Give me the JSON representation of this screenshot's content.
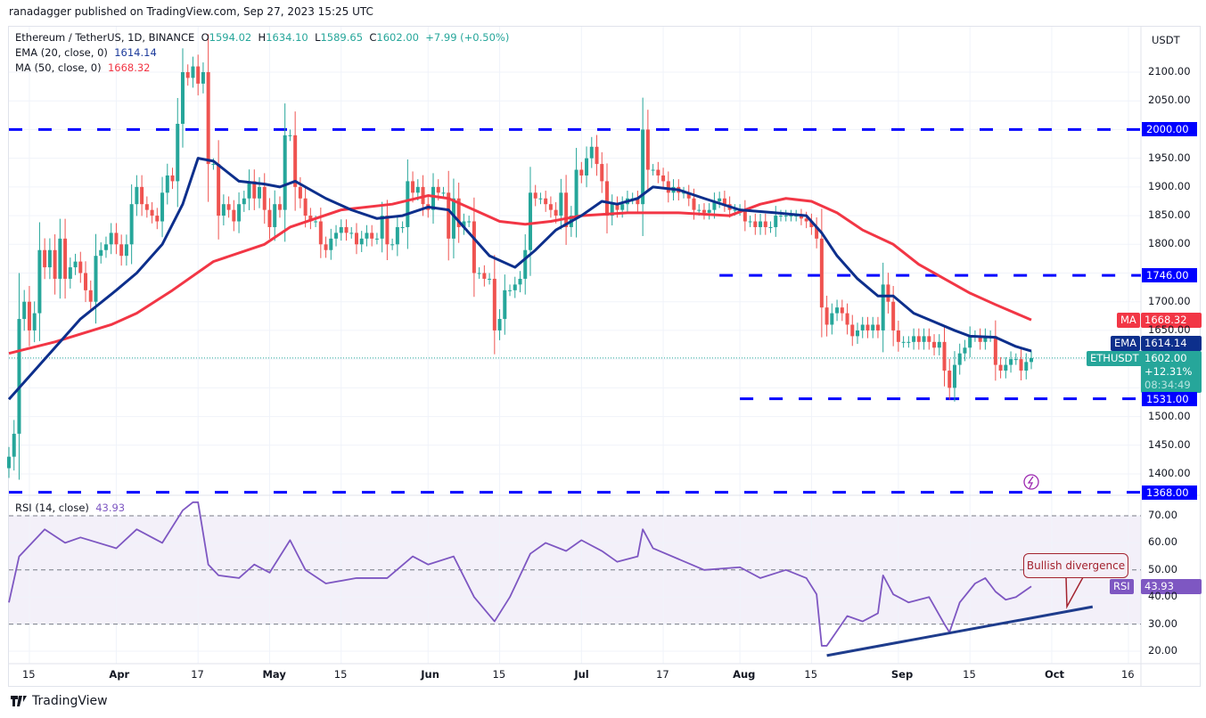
{
  "header": {
    "published": "ranadagger published on TradingView.com, Sep 27, 2023 15:25 UTC"
  },
  "symbol": {
    "name": "Ethereum / TetherUS, 1D, BINANCE",
    "o_label": "O",
    "o": "1594.02",
    "h_label": "H",
    "h": "1634.10",
    "l_label": "L",
    "l": "1589.65",
    "c_label": "C",
    "c": "1602.00",
    "change": "+7.99 (+0.50%)"
  },
  "indicators": {
    "ema": {
      "label": "EMA (20, close, 0)",
      "value": "1614.14",
      "tag": "EMA",
      "color": "#0d2f8c"
    },
    "ma": {
      "label": "MA (50, close, 0)",
      "value": "1668.32",
      "tag": "MA",
      "color": "#f23645"
    },
    "rsi": {
      "label": "RSI (14, close)",
      "value": "43.93",
      "tag": "RSI",
      "color": "#7e57c2"
    }
  },
  "price_scale": {
    "currency": "USDT",
    "ticks": [
      "2100.00",
      "2050.00",
      "1950.00",
      "1900.00",
      "1850.00",
      "1800.00",
      "1700.00",
      "1650.00",
      "1500.00",
      "1450.00",
      "1400.00"
    ]
  },
  "last_price": {
    "symbol_tag": "ETHUSDT",
    "price": "1602.00",
    "change_pct": "+12.31%",
    "countdown": "08:34:49",
    "color": "#26a69a"
  },
  "levels": [
    {
      "price": 2000,
      "label": "2000.00",
      "from": "2023-03-11"
    },
    {
      "price": 1746,
      "label": "1746.00",
      "from": "2023-07-28"
    },
    {
      "price": 1531,
      "label": "1531.00",
      "from": "2023-08-01"
    },
    {
      "price": 1368,
      "label": "1368.00",
      "from": "2023-03-11"
    }
  ],
  "rsi_scale": {
    "ticks": [
      "70.00",
      "60.00",
      "50.00",
      "40.00",
      "30.00",
      "20.00"
    ]
  },
  "time_axis": [
    {
      "label": "15",
      "date": "2023-03-15",
      "bold": false
    },
    {
      "label": "Apr",
      "date": "2023-04-01",
      "bold": true
    },
    {
      "label": "17",
      "date": "2023-04-17",
      "bold": false
    },
    {
      "label": "May",
      "date": "2023-05-01",
      "bold": true
    },
    {
      "label": "15",
      "date": "2023-05-15",
      "bold": false
    },
    {
      "label": "Jun",
      "date": "2023-06-01",
      "bold": true
    },
    {
      "label": "15",
      "date": "2023-06-15",
      "bold": false
    },
    {
      "label": "Jul",
      "date": "2023-07-01",
      "bold": true
    },
    {
      "label": "17",
      "date": "2023-07-17",
      "bold": false
    },
    {
      "label": "Aug",
      "date": "2023-08-01",
      "bold": true
    },
    {
      "label": "15",
      "date": "2023-08-15",
      "bold": false
    },
    {
      "label": "Sep",
      "date": "2023-09-01",
      "bold": true
    },
    {
      "label": "15",
      "date": "2023-09-15",
      "bold": false
    },
    {
      "label": "Oct",
      "date": "2023-10-01",
      "bold": true
    },
    {
      "label": "16",
      "date": "2023-10-16",
      "bold": false
    }
  ],
  "annotation": {
    "text": "Bullish divergence",
    "color": "#a3232f",
    "trendline": [
      [
        "2023-08-18",
        18.4
      ],
      [
        "2023-10-09",
        36.4
      ]
    ],
    "trendline_color": "#1e3c8c"
  },
  "footer": {
    "logo": "TradingView"
  },
  "chart_data": {
    "type": "candlestick",
    "title": "Ethereum / TetherUS, 1D, BINANCE",
    "ylim": [
      1350,
      2150
    ],
    "rsi_ylim": [
      15,
      80
    ],
    "up_color": "#26a69a",
    "down_color": "#ef5350",
    "start_date": "2023-03-11",
    "closes": [
      1430,
      1470,
      1670,
      1700,
      1650,
      1680,
      1790,
      1760,
      1790,
      1740,
      1810,
      1740,
      1760,
      1770,
      1750,
      1720,
      1700,
      1780,
      1790,
      1800,
      1820,
      1800,
      1780,
      1800,
      1870,
      1900,
      1870,
      1860,
      1850,
      1840,
      1890,
      1920,
      1910,
      2010,
      2100,
      2090,
      2110,
      2080,
      2100,
      1940,
      1940,
      1850,
      1870,
      1860,
      1840,
      1870,
      1880,
      1910,
      1880,
      1900,
      1860,
      1830,
      1870,
      1860,
      1990,
      1990,
      1900,
      1880,
      1850,
      1840,
      1840,
      1800,
      1790,
      1810,
      1820,
      1830,
      1820,
      1820,
      1800,
      1810,
      1820,
      1810,
      1810,
      1850,
      1800,
      1800,
      1830,
      1830,
      1910,
      1890,
      1900,
      1870,
      1860,
      1900,
      1890,
      1890,
      1810,
      1880,
      1830,
      1840,
      1840,
      1750,
      1750,
      1740,
      1740,
      1650,
      1670,
      1720,
      1720,
      1730,
      1740,
      1790,
      1890,
      1880,
      1880,
      1870,
      1860,
      1850,
      1890,
      1830,
      1850,
      1930,
      1920,
      1950,
      1970,
      1940,
      1910,
      1850,
      1870,
      1860,
      1870,
      1880,
      1880,
      1870,
      2000,
      1930,
      1930,
      1920,
      1910,
      1890,
      1900,
      1890,
      1890,
      1880,
      1860,
      1860,
      1855,
      1860,
      1875,
      1880,
      1870,
      1860,
      1860,
      1860,
      1840,
      1840,
      1830,
      1840,
      1830,
      1830,
      1850,
      1850,
      1850,
      1850,
      1850,
      1845,
      1840,
      1830,
      1810,
      1690,
      1660,
      1680,
      1690,
      1680,
      1660,
      1640,
      1650,
      1660,
      1650,
      1660,
      1650,
      1730,
      1700,
      1650,
      1630,
      1630,
      1630,
      1640,
      1630,
      1640,
      1630,
      1620,
      1630,
      1580,
      1550,
      1590,
      1610,
      1620,
      1640,
      1640,
      1630,
      1640,
      1640,
      1590,
      1580,
      1590,
      1600,
      1600,
      1580,
      1595,
      1602
    ],
    "ema20": [
      [
        "2023-03-11",
        1530
      ],
      [
        "2023-03-15",
        1570
      ],
      [
        "2023-03-20",
        1620
      ],
      [
        "2023-03-25",
        1670
      ],
      [
        "2023-04-01",
        1720
      ],
      [
        "2023-04-05",
        1750
      ],
      [
        "2023-04-10",
        1800
      ],
      [
        "2023-04-14",
        1870
      ],
      [
        "2023-04-17",
        1950
      ],
      [
        "2023-04-20",
        1945
      ],
      [
        "2023-04-25",
        1910
      ],
      [
        "2023-04-30",
        1905
      ],
      [
        "2023-05-03",
        1900
      ],
      [
        "2023-05-06",
        1910
      ],
      [
        "2023-05-12",
        1880
      ],
      [
        "2023-05-17",
        1860
      ],
      [
        "2023-05-22",
        1845
      ],
      [
        "2023-05-27",
        1850
      ],
      [
        "2023-06-01",
        1865
      ],
      [
        "2023-06-05",
        1860
      ],
      [
        "2023-06-09",
        1820
      ],
      [
        "2023-06-13",
        1780
      ],
      [
        "2023-06-18",
        1760
      ],
      [
        "2023-06-22",
        1790
      ],
      [
        "2023-06-26",
        1825
      ],
      [
        "2023-07-01",
        1850
      ],
      [
        "2023-07-05",
        1875
      ],
      [
        "2023-07-08",
        1870
      ],
      [
        "2023-07-12",
        1880
      ],
      [
        "2023-07-15",
        1900
      ],
      [
        "2023-07-20",
        1895
      ],
      [
        "2023-07-25",
        1880
      ],
      [
        "2023-08-01",
        1860
      ],
      [
        "2023-08-08",
        1855
      ],
      [
        "2023-08-14",
        1850
      ],
      [
        "2023-08-17",
        1820
      ],
      [
        "2023-08-20",
        1780
      ],
      [
        "2023-08-24",
        1740
      ],
      [
        "2023-08-28",
        1710
      ],
      [
        "2023-08-31",
        1710
      ],
      [
        "2023-09-04",
        1680
      ],
      [
        "2023-09-08",
        1665
      ],
      [
        "2023-09-12",
        1650
      ],
      [
        "2023-09-15",
        1640
      ],
      [
        "2023-09-20",
        1638
      ],
      [
        "2023-09-24",
        1622
      ],
      [
        "2023-09-27",
        1614.14
      ]
    ],
    "ma50": [
      [
        "2023-03-11",
        1610
      ],
      [
        "2023-03-20",
        1630
      ],
      [
        "2023-03-31",
        1660
      ],
      [
        "2023-04-05",
        1680
      ],
      [
        "2023-04-12",
        1720
      ],
      [
        "2023-04-20",
        1770
      ],
      [
        "2023-04-30",
        1800
      ],
      [
        "2023-05-05",
        1830
      ],
      [
        "2023-05-15",
        1860
      ],
      [
        "2023-05-25",
        1870
      ],
      [
        "2023-06-01",
        1885
      ],
      [
        "2023-06-05",
        1880
      ],
      [
        "2023-06-10",
        1860
      ],
      [
        "2023-06-15",
        1840
      ],
      [
        "2023-06-20",
        1835
      ],
      [
        "2023-06-25",
        1840
      ],
      [
        "2023-07-01",
        1850
      ],
      [
        "2023-07-10",
        1855
      ],
      [
        "2023-07-20",
        1855
      ],
      [
        "2023-07-30",
        1850
      ],
      [
        "2023-08-05",
        1870
      ],
      [
        "2023-08-10",
        1880
      ],
      [
        "2023-08-15",
        1875
      ],
      [
        "2023-08-20",
        1855
      ],
      [
        "2023-08-25",
        1825
      ],
      [
        "2023-08-31",
        1800
      ],
      [
        "2023-09-05",
        1765
      ],
      [
        "2023-09-10",
        1740
      ],
      [
        "2023-09-15",
        1715
      ],
      [
        "2023-09-20",
        1695
      ],
      [
        "2023-09-27",
        1668.32
      ]
    ],
    "rsi": [
      [
        "2023-03-11",
        38
      ],
      [
        "2023-03-13",
        55
      ],
      [
        "2023-03-18",
        65
      ],
      [
        "2023-03-22",
        60
      ],
      [
        "2023-03-25",
        62
      ],
      [
        "2023-04-01",
        58
      ],
      [
        "2023-04-05",
        65
      ],
      [
        "2023-04-10",
        60
      ],
      [
        "2023-04-14",
        72
      ],
      [
        "2023-04-16",
        75
      ],
      [
        "2023-04-17",
        75
      ],
      [
        "2023-04-19",
        52
      ],
      [
        "2023-04-21",
        48
      ],
      [
        "2023-04-25",
        47
      ],
      [
        "2023-04-28",
        52
      ],
      [
        "2023-05-01",
        49
      ],
      [
        "2023-05-05",
        61
      ],
      [
        "2023-05-08",
        50
      ],
      [
        "2023-05-12",
        45
      ],
      [
        "2023-05-18",
        47
      ],
      [
        "2023-05-24",
        47
      ],
      [
        "2023-05-29",
        55
      ],
      [
        "2023-06-01",
        52
      ],
      [
        "2023-06-06",
        55
      ],
      [
        "2023-06-10",
        40
      ],
      [
        "2023-06-14",
        31
      ],
      [
        "2023-06-17",
        40
      ],
      [
        "2023-06-21",
        56
      ],
      [
        "2023-06-24",
        60
      ],
      [
        "2023-06-28",
        57
      ],
      [
        "2023-07-01",
        61
      ],
      [
        "2023-07-05",
        57
      ],
      [
        "2023-07-08",
        53
      ],
      [
        "2023-07-12",
        55
      ],
      [
        "2023-07-13",
        65
      ],
      [
        "2023-07-15",
        58
      ],
      [
        "2023-07-20",
        54
      ],
      [
        "2023-07-25",
        50
      ],
      [
        "2023-08-01",
        51
      ],
      [
        "2023-08-05",
        47
      ],
      [
        "2023-08-10",
        50
      ],
      [
        "2023-08-14",
        47
      ],
      [
        "2023-08-16",
        41
      ],
      [
        "2023-08-17",
        22
      ],
      [
        "2023-08-18",
        22
      ],
      [
        "2023-08-22",
        33
      ],
      [
        "2023-08-25",
        31
      ],
      [
        "2023-08-28",
        34
      ],
      [
        "2023-08-29",
        48
      ],
      [
        "2023-08-31",
        41
      ],
      [
        "2023-09-03",
        38
      ],
      [
        "2023-09-07",
        40
      ],
      [
        "2023-09-10",
        30
      ],
      [
        "2023-09-11",
        27
      ],
      [
        "2023-09-13",
        38
      ],
      [
        "2023-09-16",
        45
      ],
      [
        "2023-09-18",
        47
      ],
      [
        "2023-09-20",
        42
      ],
      [
        "2023-09-22",
        39
      ],
      [
        "2023-09-24",
        40
      ],
      [
        "2023-09-27",
        43.93
      ]
    ]
  }
}
